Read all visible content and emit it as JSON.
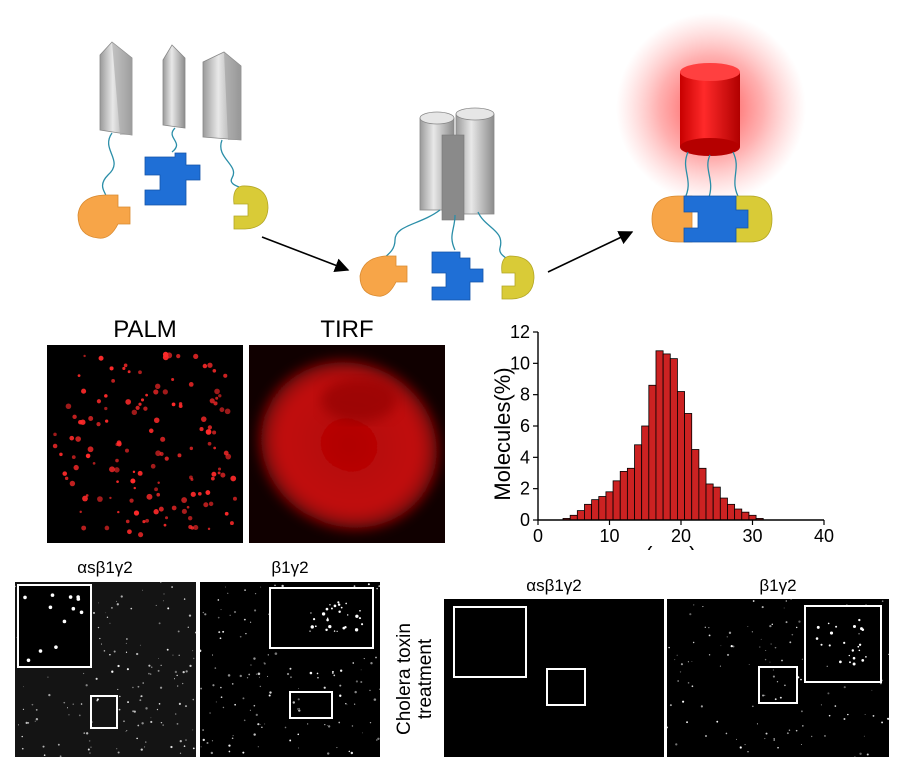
{
  "labels": {
    "palm": "PALM",
    "tirf": "TIRF",
    "cholera_line1": "Cholera toxin",
    "cholera_line2": "treatment",
    "alpha_beta_gamma": "αsβ1γ2",
    "beta_gamma": "β1γ2"
  },
  "colors": {
    "gray": "#c8c8c8",
    "blue": "#1f6fd6",
    "orange": "#f7a548",
    "yellow": "#d9cb37",
    "linker": "#2a8ea8",
    "red_glow": "#ff2020",
    "hist_bar": "#cc2222"
  },
  "chart_data": {
    "type": "bar",
    "xlabel": "σ ( nm)",
    "ylabel": "Molecules(%)",
    "xlim": [
      0,
      40
    ],
    "ylim": [
      0,
      12
    ],
    "xticks": [
      "0",
      "10",
      "20",
      "30",
      "40"
    ],
    "yticks": [
      "0",
      "2",
      "4",
      "6",
      "8",
      "10",
      "12"
    ],
    "bin_width": 1,
    "x": [
      4,
      5,
      6,
      7,
      8,
      9,
      10,
      11,
      12,
      13,
      14,
      15,
      16,
      17,
      18,
      19,
      20,
      21,
      22,
      23,
      24,
      25,
      26,
      27,
      28,
      29,
      30,
      31
    ],
    "values": [
      0.1,
      0.3,
      0.6,
      1.0,
      1.3,
      1.5,
      1.8,
      2.5,
      3.1,
      3.3,
      4.8,
      6.0,
      8.6,
      10.8,
      10.6,
      10.3,
      8.2,
      6.8,
      4.5,
      3.3,
      2.3,
      2.1,
      1.4,
      1.0,
      0.7,
      0.5,
      0.3,
      0.1
    ]
  }
}
